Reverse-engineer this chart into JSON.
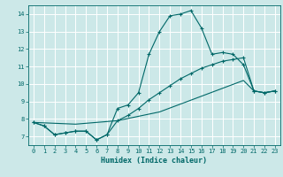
{
  "title": "",
  "xlabel": "Humidex (Indice chaleur)",
  "ylabel": "",
  "xlim": [
    -0.5,
    23.5
  ],
  "ylim": [
    6.5,
    14.5
  ],
  "yticks": [
    7,
    8,
    9,
    10,
    11,
    12,
    13,
    14
  ],
  "xticks": [
    0,
    1,
    2,
    3,
    4,
    5,
    6,
    7,
    8,
    9,
    10,
    11,
    12,
    13,
    14,
    15,
    16,
    17,
    18,
    19,
    20,
    21,
    22,
    23
  ],
  "bg_color": "#cce8e8",
  "grid_color": "#ffffff",
  "line_color": "#006868",
  "line1_x": [
    0,
    1,
    2,
    3,
    4,
    5,
    6,
    7,
    8,
    9,
    10,
    11,
    12,
    13,
    14,
    15,
    16,
    17,
    18,
    19,
    20,
    21,
    22,
    23
  ],
  "line1_y": [
    7.8,
    7.6,
    7.1,
    7.2,
    7.3,
    7.3,
    6.8,
    7.1,
    8.6,
    8.8,
    9.5,
    11.7,
    13.0,
    13.9,
    14.0,
    14.2,
    13.2,
    11.7,
    11.8,
    11.7,
    11.1,
    9.6,
    9.5,
    9.6
  ],
  "line2_x": [
    0,
    1,
    2,
    3,
    4,
    5,
    6,
    7,
    8,
    9,
    10,
    11,
    12,
    13,
    14,
    15,
    16,
    17,
    18,
    19,
    20,
    21,
    22,
    23
  ],
  "line2_y": [
    7.8,
    7.6,
    7.1,
    7.2,
    7.3,
    7.3,
    6.8,
    7.1,
    7.9,
    8.2,
    8.6,
    9.1,
    9.5,
    9.9,
    10.3,
    10.6,
    10.9,
    11.1,
    11.3,
    11.4,
    11.5,
    9.6,
    9.5,
    9.6
  ],
  "line3_x": [
    0,
    4,
    8,
    12,
    16,
    20,
    21,
    22,
    23
  ],
  "line3_y": [
    7.8,
    7.7,
    7.9,
    8.4,
    9.3,
    10.2,
    9.6,
    9.5,
    9.6
  ]
}
